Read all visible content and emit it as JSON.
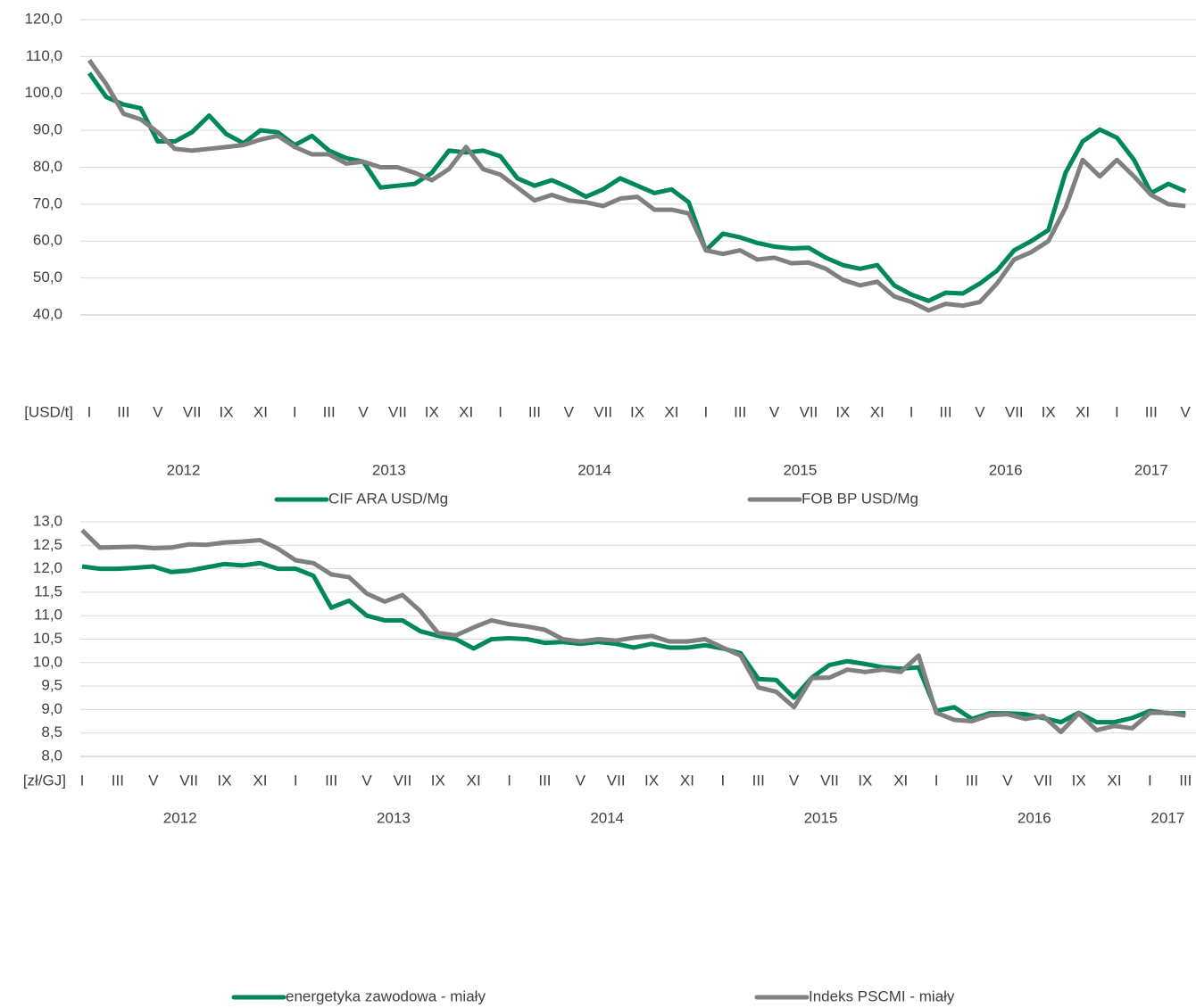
{
  "chart_data": [
    {
      "type": "line",
      "x_axis_label": "[USD/t]",
      "categories": [
        "I",
        null,
        "III",
        null,
        "V",
        null,
        "VII",
        null,
        "IX",
        null,
        "XI",
        null,
        "I",
        null,
        "III",
        null,
        "V",
        null,
        "VII",
        null,
        "IX",
        null,
        "XI",
        null,
        "I",
        null,
        "III",
        null,
        "V",
        null,
        "VII",
        null,
        "IX",
        null,
        "XI",
        null,
        "I",
        null,
        "III",
        null,
        "V",
        null,
        "VII",
        null,
        "IX",
        null,
        "XI",
        null,
        "I",
        null,
        "III",
        null,
        "V",
        null,
        "VII",
        null,
        "IX",
        null,
        "XI",
        null,
        "I",
        null,
        "III",
        null,
        "V"
      ],
      "years": [
        "2012",
        "2013",
        "2014",
        "2015",
        "2016",
        "2017"
      ],
      "ylim": [
        40,
        120
      ],
      "yticks": [
        {
          "value": 40,
          "label": "40,0"
        },
        {
          "value": 50,
          "label": "50,0"
        },
        {
          "value": 60,
          "label": "60,0"
        },
        {
          "value": 70,
          "label": "70,0"
        },
        {
          "value": 80,
          "label": "80,0"
        },
        {
          "value": 90,
          "label": "90,0"
        },
        {
          "value": 100,
          "label": "100,0"
        },
        {
          "value": 110,
          "label": "110,0"
        },
        {
          "value": 120,
          "label": "120,0"
        }
      ],
      "grid": true,
      "series": [
        {
          "name": "CIF ARA USD/Mg",
          "color": "#00875a",
          "values": [
            105.5,
            99,
            97,
            96,
            87,
            87,
            89.5,
            94,
            89,
            86.5,
            90,
            89.5,
            86,
            88.5,
            84.5,
            82.5,
            81.5,
            74.5,
            75,
            75.5,
            78.5,
            84.5,
            84,
            84.5,
            83,
            77,
            75,
            76.5,
            74.5,
            72,
            74,
            77,
            75,
            73,
            74,
            70.5,
            57.5,
            62,
            61,
            59.5,
            58.5,
            58,
            58.2,
            55.5,
            53.5,
            52.5,
            53.5,
            48,
            45.5,
            43.8,
            46,
            45.8,
            48.5,
            52,
            57.5,
            60,
            63,
            78.5,
            87,
            90.2,
            88,
            82,
            73,
            75.5,
            73.5
          ]
        },
        {
          "name": "FOB BP USD/Mg",
          "color": "#808080",
          "values": [
            109,
            102.5,
            94.5,
            93,
            89.5,
            85,
            84.5,
            85,
            85.5,
            86,
            87.5,
            88.5,
            85.5,
            83.5,
            83.5,
            81,
            81.5,
            80,
            80,
            78.5,
            76.5,
            79.5,
            85.5,
            79.5,
            78,
            74.5,
            71,
            72.5,
            71,
            70.5,
            69.5,
            71.5,
            72,
            68.5,
            68.5,
            67.5,
            57.5,
            56.5,
            57.5,
            55,
            55.5,
            54,
            54.2,
            52.5,
            49.5,
            48,
            49,
            45,
            43.5,
            41.2,
            43,
            42.5,
            43.5,
            48.5,
            55,
            57,
            60,
            69,
            82,
            77.5,
            82,
            77.5,
            72.5,
            70,
            69.5
          ]
        }
      ]
    },
    {
      "type": "line",
      "x_axis_label": "[zł/GJ]",
      "categories": [
        "I",
        null,
        "III",
        null,
        "V",
        null,
        "VII",
        null,
        "IX",
        null,
        "XI",
        null,
        "I",
        null,
        "III",
        null,
        "V",
        null,
        "VII",
        null,
        "IX",
        null,
        "XI",
        null,
        "I",
        null,
        "III",
        null,
        "V",
        null,
        "VII",
        null,
        "IX",
        null,
        "XI",
        null,
        "I",
        null,
        "III",
        null,
        "V",
        null,
        "VII",
        null,
        "IX",
        null,
        "XI",
        null,
        "I",
        null,
        "III",
        null,
        "V",
        null,
        "VII",
        null,
        "IX",
        null,
        "XI",
        null,
        "I",
        null,
        "III"
      ],
      "years": [
        "2012",
        "2013",
        "2014",
        "2015",
        "2016",
        "2017"
      ],
      "ylim": [
        8,
        13
      ],
      "yticks": [
        {
          "value": 8,
          "label": "8,0"
        },
        {
          "value": 8.5,
          "label": "8,5"
        },
        {
          "value": 9,
          "label": "9,0"
        },
        {
          "value": 9.5,
          "label": "9,5"
        },
        {
          "value": 10,
          "label": "10,0"
        },
        {
          "value": 10.5,
          "label": "10,5"
        },
        {
          "value": 11,
          "label": "11,0"
        },
        {
          "value": 11.5,
          "label": "11,5"
        },
        {
          "value": 12,
          "label": "12,0"
        },
        {
          "value": 12.5,
          "label": "12,5"
        },
        {
          "value": 13,
          "label": "13,0"
        }
      ],
      "grid": true,
      "series": [
        {
          "name": "energetyka zawodowa - miały",
          "color": "#00875a",
          "values": [
            12.05,
            12.0,
            12.0,
            12.02,
            12.05,
            11.93,
            11.96,
            12.03,
            12.1,
            12.07,
            12.12,
            12.0,
            12.0,
            11.85,
            11.17,
            11.32,
            11.0,
            10.9,
            10.9,
            10.67,
            10.57,
            10.5,
            10.3,
            10.5,
            10.52,
            10.5,
            10.42,
            10.44,
            10.4,
            10.44,
            10.4,
            10.32,
            10.4,
            10.32,
            10.32,
            10.37,
            10.3,
            10.2,
            9.65,
            9.63,
            9.25,
            9.68,
            9.95,
            10.03,
            9.97,
            9.9,
            9.87,
            9.9,
            8.97,
            9.05,
            8.8,
            8.92,
            8.92,
            8.9,
            8.82,
            8.73,
            8.93,
            8.73,
            8.73,
            8.82,
            8.97,
            8.92,
            8.92
          ]
        },
        {
          "name": "Indeks PSCMI - miały",
          "color": "#808080",
          "values": [
            12.82,
            12.45,
            12.46,
            12.47,
            12.44,
            12.45,
            12.52,
            12.51,
            12.56,
            12.58,
            12.61,
            12.43,
            12.18,
            12.12,
            11.88,
            11.82,
            11.47,
            11.3,
            11.44,
            11.1,
            10.63,
            10.58,
            10.75,
            10.9,
            10.82,
            10.77,
            10.7,
            10.5,
            10.45,
            10.5,
            10.47,
            10.53,
            10.57,
            10.45,
            10.45,
            10.5,
            10.32,
            10.15,
            9.47,
            9.38,
            9.05,
            9.67,
            9.68,
            9.85,
            9.8,
            9.85,
            9.8,
            10.15,
            8.93,
            8.78,
            8.75,
            8.88,
            8.9,
            8.8,
            8.86,
            8.52,
            8.92,
            8.56,
            8.65,
            8.6,
            8.93,
            8.93,
            8.87
          ]
        }
      ]
    }
  ]
}
